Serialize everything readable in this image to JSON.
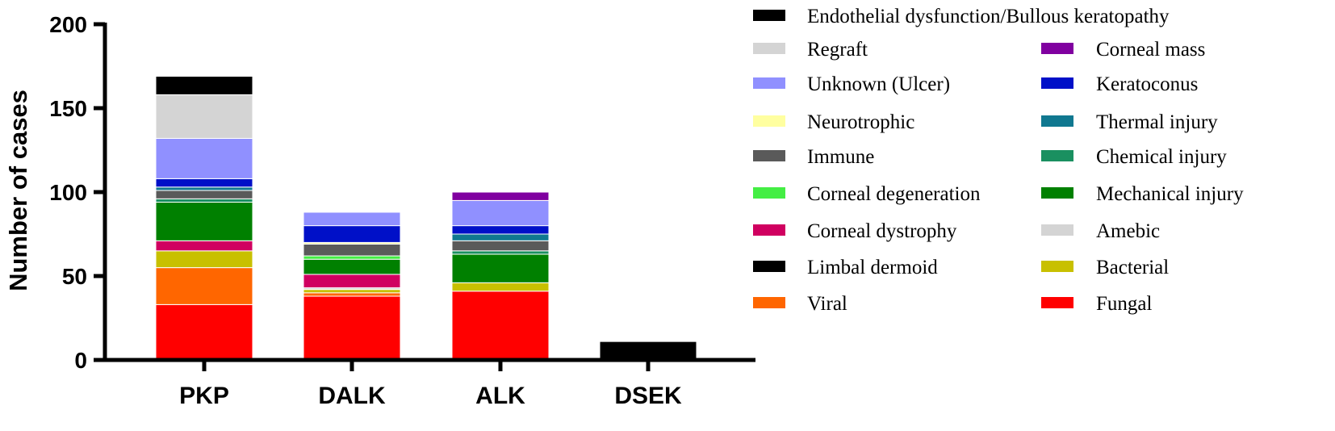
{
  "chart_data": {
    "type": "bar",
    "stacked": true,
    "ylabel": "Number of cases",
    "xlabel": "",
    "ylim": [
      0,
      200
    ],
    "yticks": [
      0,
      50,
      100,
      150,
      200
    ],
    "categories": [
      "PKP",
      "DALK",
      "ALK",
      "DSEK"
    ],
    "legend_position": "right",
    "series": [
      {
        "name": "Fungal",
        "color": "#ff0000",
        "values": [
          33,
          38,
          41,
          0
        ]
      },
      {
        "name": "Viral",
        "color": "#ff6600",
        "values": [
          22,
          2,
          0,
          0
        ]
      },
      {
        "name": "Bacterial",
        "color": "#c8c000",
        "values": [
          10,
          2,
          5,
          0
        ]
      },
      {
        "name": "Limbal dermoid",
        "color": "#000000",
        "values": [
          0,
          0,
          0,
          0
        ]
      },
      {
        "name": "Amebic",
        "color": "#d4d4d4",
        "values": [
          0,
          1,
          0,
          0
        ]
      },
      {
        "name": "Corneal dystrophy",
        "color": "#d00060",
        "values": [
          6,
          8,
          0,
          0
        ]
      },
      {
        "name": "Mechanical injury",
        "color": "#008000",
        "values": [
          23,
          9,
          17,
          0
        ]
      },
      {
        "name": "Corneal degeneration",
        "color": "#44ee44",
        "values": [
          0,
          2,
          0,
          0
        ]
      },
      {
        "name": "Chemical injury",
        "color": "#1a9060",
        "values": [
          2,
          0,
          2,
          0
        ]
      },
      {
        "name": "Immune",
        "color": "#5a5a5a",
        "values": [
          5,
          7,
          6,
          0
        ]
      },
      {
        "name": "Thermal injury",
        "color": "#107890",
        "values": [
          2,
          0,
          4,
          0
        ]
      },
      {
        "name": "Neurotrophic",
        "color": "#ffffa0",
        "values": [
          0,
          1,
          0,
          0
        ]
      },
      {
        "name": "Keratoconus",
        "color": "#0010c8",
        "values": [
          5,
          10,
          5,
          0
        ]
      },
      {
        "name": "Unknown (Ulcer)",
        "color": "#9090ff",
        "values": [
          24,
          8,
          15,
          0
        ]
      },
      {
        "name": "Corneal mass",
        "color": "#8000a0",
        "values": [
          0,
          0,
          5,
          0
        ]
      },
      {
        "name": "Regraft",
        "color": "#d4d4d4",
        "values": [
          26,
          0,
          0,
          0
        ]
      },
      {
        "name": "Endothelial dysfunction/Bullous keratopathy",
        "color": "#000000",
        "values": [
          11,
          0,
          0,
          11
        ]
      }
    ],
    "legend_layout": {
      "full_width": "Endothelial dysfunction/Bullous keratopathy",
      "left_column": [
        "Regraft",
        "Unknown (Ulcer)",
        "Neurotrophic",
        "Immune",
        "Corneal degeneration",
        "Corneal dystrophy",
        "Limbal dermoid",
        "Viral"
      ],
      "right_column": [
        "Corneal mass",
        "Keratoconus",
        "Thermal injury",
        "Chemical injury",
        "Mechanical injury",
        "Amebic",
        "Bacterial",
        "Fungal"
      ]
    }
  }
}
